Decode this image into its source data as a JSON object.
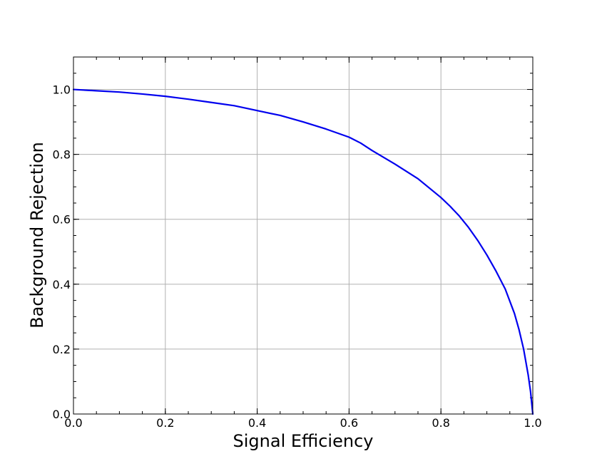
{
  "chart_data": {
    "type": "line",
    "title": "",
    "xlabel": "Signal Efficiency",
    "ylabel": "Background Rejection",
    "xlim": [
      0.0,
      1.0
    ],
    "ylim": [
      0.0,
      1.1
    ],
    "xticks": [
      0.0,
      0.2,
      0.4,
      0.6,
      0.8,
      1.0
    ],
    "xtick_labels": [
      "0.0",
      "0.2",
      "0.4",
      "0.6",
      "0.8",
      "1.0"
    ],
    "yticks": [
      0.0,
      0.2,
      0.4,
      0.6,
      0.8,
      1.0
    ],
    "ytick_labels": [
      "0.0",
      "0.2",
      "0.4",
      "0.6",
      "0.8",
      "1.0"
    ],
    "grid": true,
    "legend": "none",
    "colors": {
      "line": "#0000ee",
      "grid": "#b0b0b0",
      "axes": "#000000"
    },
    "series": [
      {
        "x": [
          0.0,
          0.05,
          0.1,
          0.15,
          0.2,
          0.25,
          0.3,
          0.35,
          0.4,
          0.45,
          0.5,
          0.55,
          0.6,
          0.625,
          0.65,
          0.7,
          0.75,
          0.8,
          0.82,
          0.84,
          0.86,
          0.88,
          0.9,
          0.92,
          0.94,
          0.96,
          0.97,
          0.98,
          0.99,
          0.995,
          1.0
        ],
        "y": [
          1.0,
          0.996,
          0.992,
          0.986,
          0.979,
          0.97,
          0.96,
          0.95,
          0.935,
          0.92,
          0.9,
          0.878,
          0.853,
          0.835,
          0.812,
          0.77,
          0.725,
          0.667,
          0.64,
          0.61,
          0.575,
          0.535,
          0.49,
          0.44,
          0.385,
          0.31,
          0.26,
          0.2,
          0.12,
          0.07,
          0.0
        ]
      }
    ]
  }
}
